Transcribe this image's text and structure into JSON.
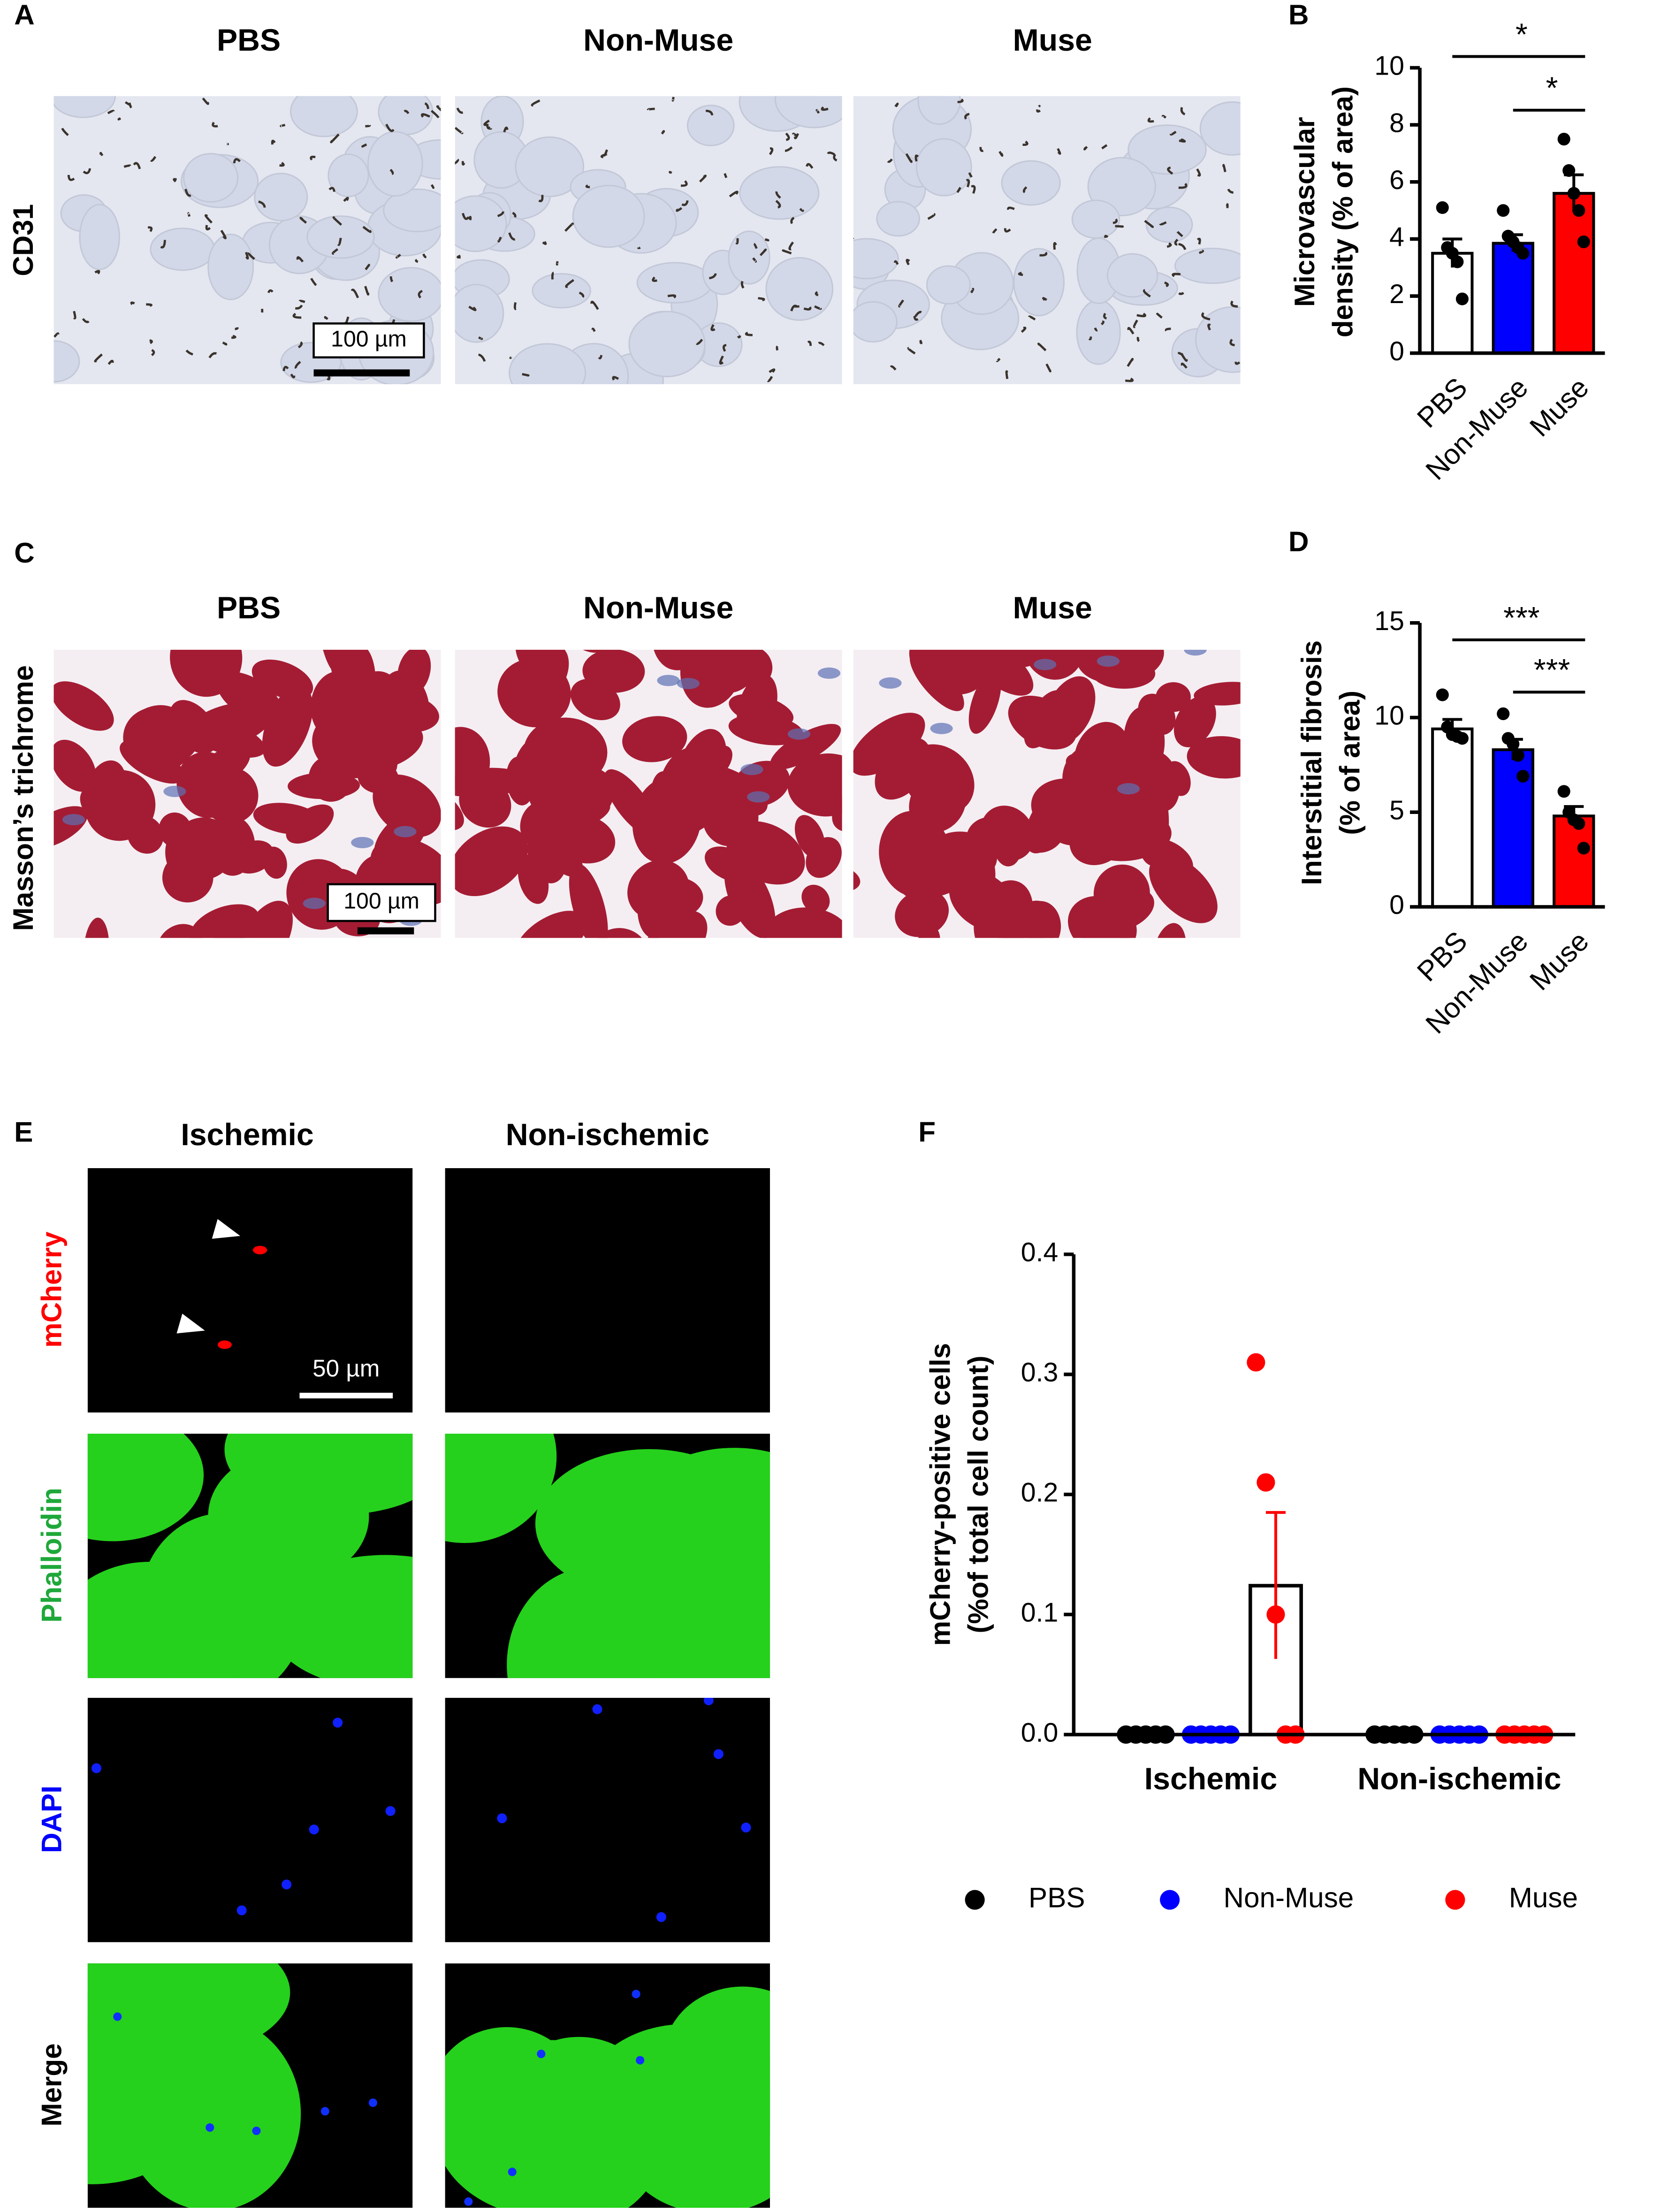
{
  "panels": {
    "labels": [
      "A",
      "B",
      "C",
      "D",
      "E",
      "F"
    ],
    "A": {
      "columns": [
        "PBS",
        "Non-Muse",
        "Muse"
      ],
      "row": "CD31",
      "scale_bar": "100 µm"
    },
    "C": {
      "columns": [
        "PBS",
        "Non-Muse",
        "Muse"
      ],
      "row": "Masson’s trichrome",
      "scale_bar": "100 µm"
    },
    "E": {
      "columns": [
        "Ischemic",
        "Non-ischemic"
      ],
      "rows": [
        "mCherry",
        "Phalloidin",
        "DAPI",
        "Merge"
      ],
      "scale_bar": "50 µm"
    }
  },
  "chart_data": [
    {
      "type": "bar",
      "ylabel": [
        "Microvascular",
        "density  (% of area)"
      ],
      "categories": [
        "PBS",
        "Non-Muse",
        "Muse"
      ],
      "values": [
        3.5,
        3.85,
        5.6
      ],
      "errors": [
        0.5,
        0.3,
        0.65
      ],
      "points": [
        [
          5.1,
          3.7,
          3.5,
          3.2,
          1.9
        ],
        [
          5.0,
          4.1,
          3.9,
          3.7,
          3.5
        ],
        [
          7.5,
          6.4,
          5.6,
          5.0,
          3.9
        ]
      ],
      "colors": [
        "#ffffff",
        "#0000ff",
        "#ff0000"
      ],
      "ylim": [
        0,
        10
      ],
      "yticks": [
        0,
        2,
        4,
        6,
        8,
        10
      ],
      "annotations": [
        {
          "text": "*",
          "from": 0,
          "to": 2
        },
        {
          "text": "*",
          "from": 1,
          "to": 2
        }
      ]
    },
    {
      "type": "bar",
      "ylabel": [
        "Interstitial fibrosis",
        "(% of area)"
      ],
      "categories": [
        "PBS",
        "Non-Muse",
        "Muse"
      ],
      "values": [
        9.4,
        8.3,
        4.8
      ],
      "errors": [
        0.5,
        0.55,
        0.5
      ],
      "points": [
        [
          11.2,
          9.5,
          9.1,
          9.0,
          8.9
        ],
        [
          10.2,
          8.9,
          8.6,
          8.0,
          6.9
        ],
        [
          6.1,
          5.0,
          4.6,
          4.4,
          3.1
        ]
      ],
      "colors": [
        "#ffffff",
        "#0000ff",
        "#ff0000"
      ],
      "ylim": [
        0,
        15
      ],
      "yticks": [
        0,
        5,
        10,
        15
      ],
      "annotations": [
        {
          "text": "***",
          "from": 0,
          "to": 2
        },
        {
          "text": "***",
          "from": 1,
          "to": 2
        }
      ]
    },
    {
      "type": "dotplot",
      "ylabel": [
        "mCherry-positive cells",
        "(%of total cell count)"
      ],
      "categories": [
        "Ischemic",
        "Non-ischemic"
      ],
      "series": [
        {
          "name": "PBS",
          "color": "#000000",
          "values": [
            0,
            0
          ],
          "errors": [
            0,
            0
          ],
          "points": [
            [
              0,
              0,
              0,
              0,
              0
            ],
            [
              0,
              0,
              0,
              0,
              0
            ]
          ]
        },
        {
          "name": "Non-Muse",
          "color": "#0000ff",
          "values": [
            0,
            0
          ],
          "errors": [
            0,
            0
          ],
          "points": [
            [
              0,
              0,
              0,
              0,
              0
            ],
            [
              0,
              0,
              0,
              0,
              0
            ]
          ]
        },
        {
          "name": "Muse",
          "color": "#ff0000",
          "values": [
            0.124,
            0
          ],
          "errors": [
            0.061,
            0
          ],
          "points": [
            [
              0.31,
              0.21,
              0.1,
              0,
              0
            ],
            [
              0,
              0,
              0,
              0,
              0
            ]
          ]
        }
      ],
      "ylim": [
        0,
        0.4
      ],
      "yticks": [
        {
          "value": 0,
          "label": "0.0"
        },
        0.1,
        0.2,
        0.3,
        0.4
      ],
      "legend": "bottom"
    }
  ]
}
